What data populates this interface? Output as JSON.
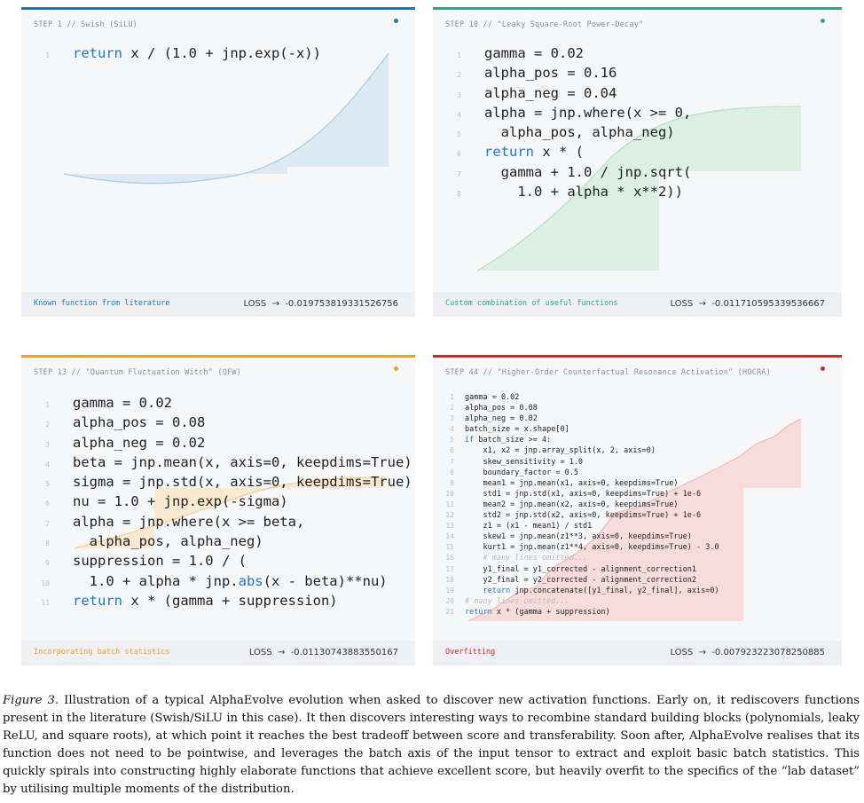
{
  "panels": [
    {
      "step": "STEP 1 // Swish (SiLU)",
      "tag": "Known function from literature",
      "loss": "LOSS  →  -0.019753819331526756",
      "accent": "#1f77b4",
      "fill": "#dde9f3",
      "line": "#a9cbe6",
      "code": [
        {
          "n": "1",
          "parts": [
            {
              "t": "return",
              "kw": true
            },
            {
              "t": " x / (1.0 + jnp.exp(-x))"
            }
          ]
        }
      ]
    },
    {
      "step": "STEP 10 // \"Leaky Square-Root Power-Decay\"",
      "tag": "Custom combination of useful functions",
      "loss": "LOSS  →  -0.011710595339536667",
      "accent": "#2ca58a",
      "fill": "#dcefe3",
      "line": "#b6dfc6",
      "code": [
        {
          "n": "1",
          "parts": [
            {
              "t": "gamma = 0.02"
            }
          ]
        },
        {
          "n": "2",
          "parts": [
            {
              "t": "alpha_pos = 0.16"
            }
          ]
        },
        {
          "n": "3",
          "parts": [
            {
              "t": "alpha_neg = 0.04"
            }
          ]
        },
        {
          "n": "4",
          "parts": [
            {
              "t": "alpha = jnp.where(x >= 0,"
            }
          ]
        },
        {
          "n": "5",
          "parts": [
            {
              "t": "  alpha_pos, alpha_neg)"
            }
          ]
        },
        {
          "n": "6",
          "parts": [
            {
              "t": "return",
              "kw": true
            },
            {
              "t": " x * ("
            }
          ]
        },
        {
          "n": "7",
          "parts": [
            {
              "t": "  gamma + 1.0 / jnp.sqrt("
            }
          ]
        },
        {
          "n": "8",
          "parts": [
            {
              "t": "    1.0 + alpha * x**2))"
            }
          ]
        }
      ]
    },
    {
      "step": "STEP 13 // \"Quantum Fluctuation Witch\" (QFW)",
      "tag": "Incorporating batch statistics",
      "loss": "LOSS  →  -0.01130743883550167",
      "accent": "#f39c1e",
      "fill": "#f9e9d0",
      "line": "#f4cf95",
      "code": [
        {
          "n": "1",
          "parts": [
            {
              "t": "gamma = 0.02"
            }
          ]
        },
        {
          "n": "2",
          "parts": [
            {
              "t": "alpha_pos = 0.08"
            }
          ]
        },
        {
          "n": "3",
          "parts": [
            {
              "t": "alpha_neg = 0.02"
            }
          ]
        },
        {
          "n": "4",
          "parts": [
            {
              "t": "beta = jnp.mean(x, axis=0, keepdims=True)"
            }
          ]
        },
        {
          "n": "5",
          "parts": [
            {
              "t": "sigma = jnp.std(x, axis=0, keepdims=True)"
            }
          ]
        },
        {
          "n": "6",
          "parts": [
            {
              "t": "nu = 1.0 + jnp.exp(-sigma)"
            }
          ]
        },
        {
          "n": "7",
          "parts": [
            {
              "t": "alpha = jnp.where(x >= beta,"
            }
          ]
        },
        {
          "n": "8",
          "parts": [
            {
              "t": "  alpha_pos, alpha_neg)"
            }
          ]
        },
        {
          "n": "9",
          "parts": [
            {
              "t": "suppression = 1.0 / ("
            }
          ]
        },
        {
          "n": "10",
          "parts": [
            {
              "t": "  1.0 + alpha * jnp."
            },
            {
              "t": "abs",
              "kw": true
            },
            {
              "t": "(x - beta)**nu)"
            }
          ]
        },
        {
          "n": "11",
          "parts": [
            {
              "t": "return",
              "kw": true
            },
            {
              "t": " x * (gamma + suppression)"
            }
          ]
        }
      ]
    },
    {
      "step": "STEP 44 // \"Higher-Order Counterfactual Resonance Activation\" (HOCRA)",
      "tag": "Overfitting",
      "loss": "LOSS  →  -0.007923223078250885",
      "accent": "#d62728",
      "fill": "#f8dcdc",
      "line": "#f1b6b6",
      "code": [
        {
          "n": "1",
          "parts": [
            {
              "t": "gamma = 0.02"
            }
          ]
        },
        {
          "n": "2",
          "parts": [
            {
              "t": "alpha_pos = 0.08"
            }
          ]
        },
        {
          "n": "3",
          "parts": [
            {
              "t": "alpha_neg = 0.02"
            }
          ]
        },
        {
          "n": "4",
          "parts": [
            {
              "t": "batch_size = x.shape[0]"
            }
          ]
        },
        {
          "n": "5",
          "parts": [
            {
              "t": "if",
              "kw": true
            },
            {
              "t": " batch_size >= 4:"
            }
          ]
        },
        {
          "n": "6",
          "parts": [
            {
              "t": "    x1, x2 = jnp.array_split(x, 2, axis=0)"
            }
          ]
        },
        {
          "n": "7",
          "parts": [
            {
              "t": "    skew_sensitivity = 1.0"
            }
          ]
        },
        {
          "n": "8",
          "parts": [
            {
              "t": "    boundary_factor = 0.5"
            }
          ]
        },
        {
          "n": "9",
          "parts": [
            {
              "t": "    mean1 = jnp.mean(x1, axis=0, keepdims=True)"
            }
          ]
        },
        {
          "n": "10",
          "parts": [
            {
              "t": "    std1 = jnp.std(x1, axis=0, keepdims=True) + 1e-6"
            }
          ]
        },
        {
          "n": "11",
          "parts": [
            {
              "t": "    mean2 = jnp.mean(x2, axis=0, keepdims=True)"
            }
          ]
        },
        {
          "n": "12",
          "parts": [
            {
              "t": "    std2 = jnp.std(x2, axis=0, keepdims=True) + 1e-6"
            }
          ]
        },
        {
          "n": "13",
          "parts": [
            {
              "t": "    z1 = (x1 - mean1) / std1"
            }
          ]
        },
        {
          "n": "14",
          "parts": [
            {
              "t": "    skew1 = jnp.mean(z1**3, axis=0, keepdims=True)"
            }
          ]
        },
        {
          "n": "15",
          "parts": [
            {
              "t": "    kurt1 = jnp.mean(z1**4, axis=0, keepdims=True) - 3.0"
            }
          ]
        },
        {
          "n": "16",
          "parts": [
            {
              "t": "    # many lines omitted...",
              "cm": true
            }
          ]
        },
        {
          "n": "17",
          "parts": [
            {
              "t": "    y1_final = y1_corrected - alignment_correction1"
            }
          ]
        },
        {
          "n": "18",
          "parts": [
            {
              "t": "    y2_final = y2_corrected - alignment_correction2"
            }
          ]
        },
        {
          "n": "19",
          "parts": [
            {
              "t": "    "
            },
            {
              "t": "return",
              "kw": true
            },
            {
              "t": " jnp.concatenate([y1_final, y2_final], axis=0)"
            }
          ]
        },
        {
          "n": "20",
          "parts": [
            {
              "t": "# many lines omitted...",
              "cm": true
            }
          ]
        },
        {
          "n": "21",
          "parts": [
            {
              "t": "return",
              "kw": true
            },
            {
              "t": " x * (gamma + suppression)"
            }
          ]
        }
      ]
    }
  ],
  "caption": {
    "label": "Figure 3.",
    "text": "Illustration of a typical AlphaEvolve evolution when asked to discover new activation functions. Early on, it rediscovers functions present in the literature (Swish/SiLU in this case). It then discovers interesting ways to recombine standard building blocks (polynomials, leaky ReLU, and square roots), at which point it reaches the best tradeoff between score and transferability. Soon after, AlphaEvolve realises that its function does not need to be pointwise, and leverages the batch axis of the input tensor to extract and exploit basic batch statistics. This quickly spirals into constructing highly elaborate functions that achieve excellent score, but heavily overfit to the specifics of the “lab dataset” by utilising multiple moments of the distribution."
  }
}
